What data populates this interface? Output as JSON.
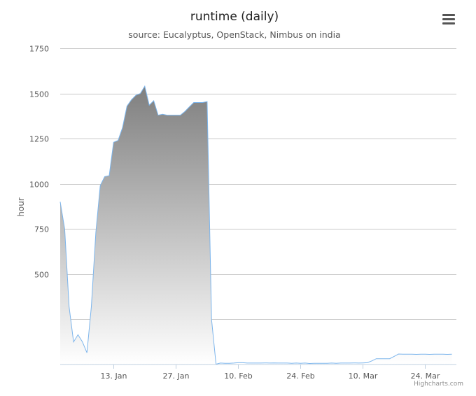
{
  "menu_icon": "hamburger-menu-icon",
  "credits": "Highcharts.com",
  "chart_data": {
    "type": "area",
    "title": "runtime (daily)",
    "subtitle": "source: Eucalyptus, OpenStack, Nimbus on india",
    "ylabel": "hour",
    "xlabel": "",
    "ylim": [
      0,
      1750
    ],
    "y_tick_labels": [
      "",
      "",
      "500",
      "750",
      "1000",
      "1250",
      "1500",
      "1750"
    ],
    "y_tick_values": [
      0,
      250,
      500,
      750,
      1000,
      1250,
      1500,
      1750
    ],
    "x_start": "2013-01-01",
    "x_end": "2013-03-31",
    "x_ticks": [
      {
        "date": "2013-01-13",
        "label": "13. Jan"
      },
      {
        "date": "2013-01-27",
        "label": "27. Jan"
      },
      {
        "date": "2013-02-10",
        "label": "10. Feb"
      },
      {
        "date": "2013-02-24",
        "label": "24. Feb"
      },
      {
        "date": "2013-03-10",
        "label": "10. Mar"
      },
      {
        "date": "2013-03-24",
        "label": "24. Mar"
      }
    ],
    "grid": true,
    "legend": "none",
    "line_color": "#7cb5ec",
    "fill_top_color": "#7f7f7f",
    "fill_bottom_color": "#ffffff",
    "series": [
      {
        "values": [
          [
            "2013-01-01",
            900
          ],
          [
            "2013-01-02",
            750
          ],
          [
            "2013-01-03",
            320
          ],
          [
            "2013-01-04",
            125
          ],
          [
            "2013-01-05",
            165
          ],
          [
            "2013-01-06",
            125
          ],
          [
            "2013-01-07",
            65
          ],
          [
            "2013-01-08",
            320
          ],
          [
            "2013-01-09",
            730
          ],
          [
            "2013-01-10",
            990
          ],
          [
            "2013-01-11",
            1040
          ],
          [
            "2013-01-12",
            1045
          ],
          [
            "2013-01-13",
            1230
          ],
          [
            "2013-01-14",
            1240
          ],
          [
            "2013-01-15",
            1310
          ],
          [
            "2013-01-16",
            1430
          ],
          [
            "2013-01-17",
            1465
          ],
          [
            "2013-01-18",
            1490
          ],
          [
            "2013-01-19",
            1500
          ],
          [
            "2013-01-20",
            1540
          ],
          [
            "2013-01-21",
            1435
          ],
          [
            "2013-01-22",
            1460
          ],
          [
            "2013-01-23",
            1380
          ],
          [
            "2013-01-24",
            1385
          ],
          [
            "2013-01-25",
            1380
          ],
          [
            "2013-01-26",
            1380
          ],
          [
            "2013-01-27",
            1380
          ],
          [
            "2013-01-28",
            1380
          ],
          [
            "2013-01-29",
            1400
          ],
          [
            "2013-01-30",
            1425
          ],
          [
            "2013-01-31",
            1450
          ],
          [
            "2013-02-01",
            1450
          ],
          [
            "2013-02-02",
            1450
          ],
          [
            "2013-02-03",
            1455
          ],
          [
            "2013-02-04",
            250
          ],
          [
            "2013-02-05",
            2
          ],
          [
            "2013-02-06",
            8
          ],
          [
            "2013-02-07",
            7
          ],
          [
            "2013-02-08",
            7
          ],
          [
            "2013-02-09",
            8
          ],
          [
            "2013-02-10",
            10
          ],
          [
            "2013-02-11",
            10
          ],
          [
            "2013-02-12",
            8
          ],
          [
            "2013-02-13",
            8
          ],
          [
            "2013-02-14",
            8
          ],
          [
            "2013-02-15",
            8
          ],
          [
            "2013-02-16",
            9
          ],
          [
            "2013-02-17",
            8
          ],
          [
            "2013-02-18",
            9
          ],
          [
            "2013-02-19",
            8
          ],
          [
            "2013-02-20",
            8
          ],
          [
            "2013-02-21",
            8
          ],
          [
            "2013-02-22",
            7
          ],
          [
            "2013-02-23",
            8
          ],
          [
            "2013-02-24",
            7
          ],
          [
            "2013-02-25",
            8
          ],
          [
            "2013-02-26",
            6
          ],
          [
            "2013-02-27",
            7
          ],
          [
            "2013-02-28",
            7
          ],
          [
            "2013-03-01",
            7
          ],
          [
            "2013-03-02",
            7
          ],
          [
            "2013-03-03",
            8
          ],
          [
            "2013-03-04",
            7
          ],
          [
            "2013-03-05",
            8
          ],
          [
            "2013-03-06",
            8
          ],
          [
            "2013-03-07",
            8
          ],
          [
            "2013-03-08",
            9
          ],
          [
            "2013-03-09",
            8
          ],
          [
            "2013-03-10",
            9
          ],
          [
            "2013-03-11",
            10
          ],
          [
            "2013-03-12",
            20
          ],
          [
            "2013-03-13",
            32
          ],
          [
            "2013-03-14",
            32
          ],
          [
            "2013-03-15",
            32
          ],
          [
            "2013-03-16",
            32
          ],
          [
            "2013-03-17",
            45
          ],
          [
            "2013-03-18",
            58
          ],
          [
            "2013-03-19",
            57
          ],
          [
            "2013-03-20",
            57
          ],
          [
            "2013-03-21",
            57
          ],
          [
            "2013-03-22",
            56
          ],
          [
            "2013-03-23",
            57
          ],
          [
            "2013-03-24",
            57
          ],
          [
            "2013-03-25",
            56
          ],
          [
            "2013-03-26",
            57
          ],
          [
            "2013-03-27",
            57
          ],
          [
            "2013-03-28",
            57
          ],
          [
            "2013-03-29",
            56
          ],
          [
            "2013-03-30",
            57
          ]
        ]
      }
    ]
  }
}
